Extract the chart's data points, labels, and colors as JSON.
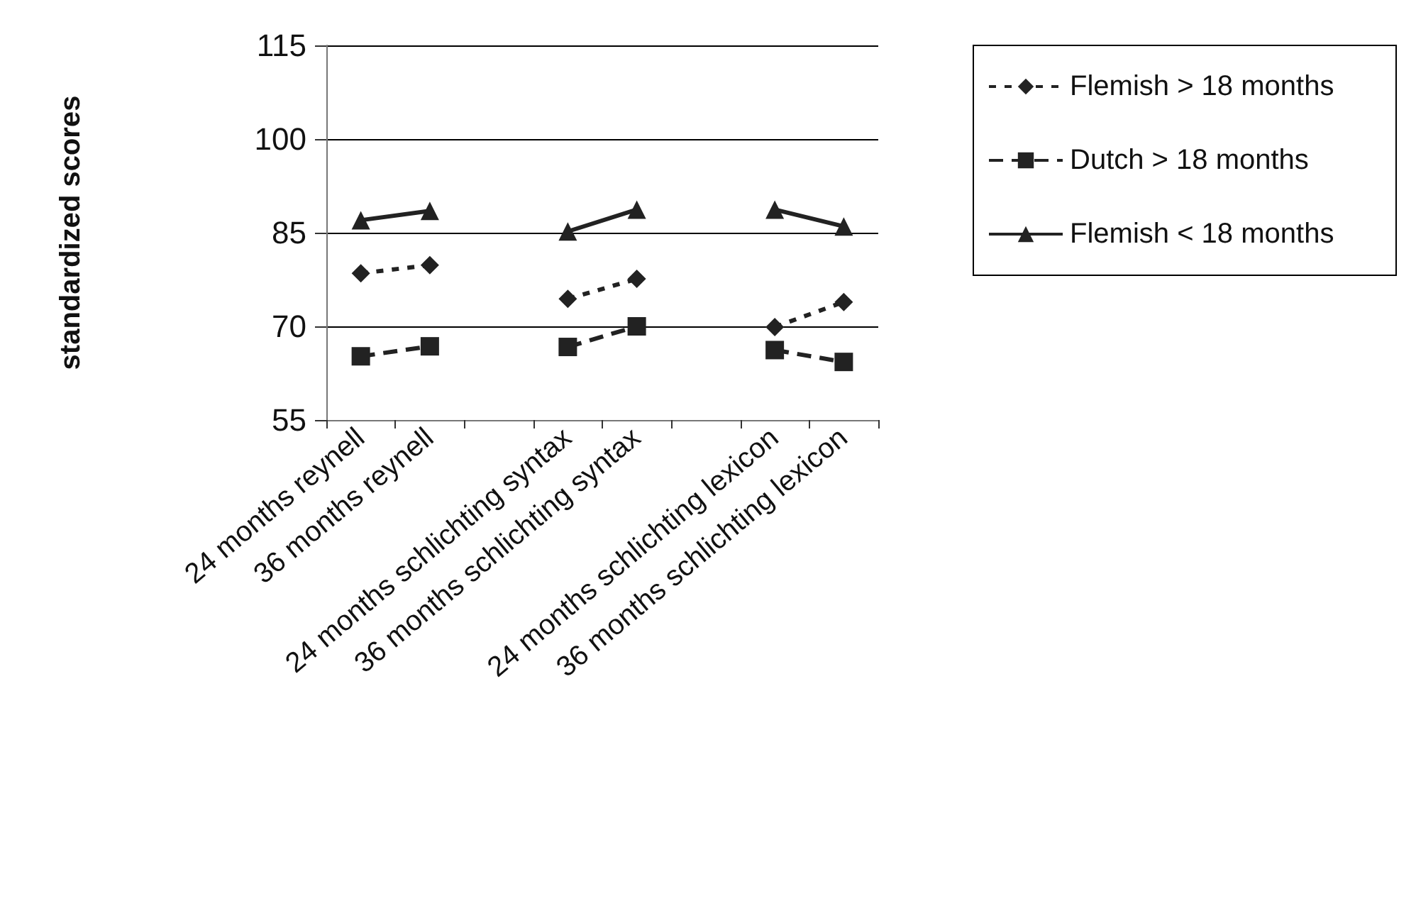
{
  "chart_data": {
    "type": "line",
    "ylabel": "standardized scores",
    "categories": [
      "24 months reynell",
      "36 months reynell",
      null,
      "24 months schlichting syntax",
      "36 months schlichting syntax",
      null,
      "24 months schlichting lexicon",
      "36 months schlichting lexicon"
    ],
    "series": [
      {
        "name": "Flemish > 18 months",
        "color": "#222222",
        "marker": "diamond",
        "line_style": "dotted",
        "values": [
          78.5,
          79.8,
          null,
          74.4,
          77.6,
          null,
          69.9,
          73.9
        ]
      },
      {
        "name": "Dutch > 18 months",
        "color": "#222222",
        "marker": "square",
        "line_style": "dashed",
        "values": [
          65.2,
          66.8,
          null,
          66.7,
          70,
          null,
          66.2,
          64.3
        ]
      },
      {
        "name": "Flemish < 18 months",
        "color": "#222222",
        "marker": "triangle",
        "line_style": "solid",
        "values": [
          87,
          88.5,
          null,
          85.2,
          88.7,
          null,
          88.7,
          86
        ]
      }
    ],
    "ylim": [
      55,
      115
    ],
    "yticks": [
      55,
      70,
      85,
      100,
      115
    ],
    "grid": "y",
    "legend": "right"
  }
}
